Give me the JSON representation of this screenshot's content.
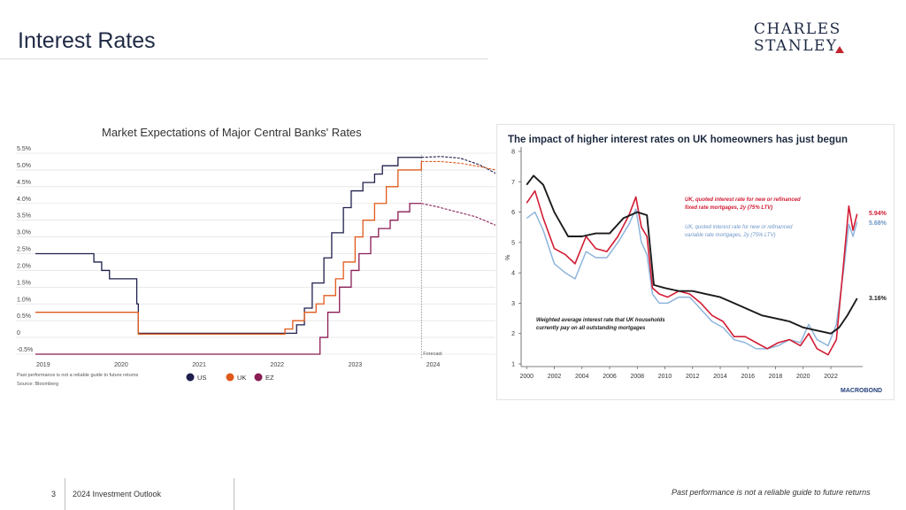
{
  "slide": {
    "title": "Interest Rates",
    "page_number": "3",
    "footer_label": "2024 Investment Outlook",
    "footer_disclaimer": "Past performance is not a reliable guide to future returns"
  },
  "logo": {
    "line1": "CHARLES",
    "line2": "STANLEY"
  },
  "chart_data": [
    {
      "type": "line",
      "title": "Market Expectations of Major Central Banks' Rates",
      "x_ticks": [
        "2019",
        "2020",
        "2021",
        "2022",
        "2023",
        "2024"
      ],
      "y_ticks": [
        "5.5%",
        "5.0%",
        "4.5%",
        "4.0%",
        "3.5%",
        "3.0%",
        "2.5%",
        "2.0%",
        "1.5%",
        "1.0%",
        "0.5%",
        "0",
        "-0.5%"
      ],
      "xlim": [
        2018.9,
        2024.8
      ],
      "ylim": [
        -0.5,
        5.5
      ],
      "forecast_label": "Forecast",
      "forecast_start": 2023.85,
      "footnote": "Past performance is not a reliable guide to future returns",
      "source": "Source: Bloomberg",
      "colors": {
        "US": "#1f1f4d",
        "UK": "#e05a1c",
        "EZ": "#8a1c55"
      },
      "series": [
        {
          "name": "US",
          "x": [
            2018.9,
            2019.55,
            2019.65,
            2019.75,
            2019.85,
            2020.15,
            2020.2,
            2020.22,
            2022.2,
            2022.25,
            2022.35,
            2022.45,
            2022.6,
            2022.7,
            2022.85,
            2022.95,
            2023.1,
            2023.25,
            2023.35,
            2023.55,
            2023.85
          ],
          "y": [
            2.5,
            2.5,
            2.25,
            2.0,
            1.75,
            1.75,
            1.0,
            0.125,
            0.125,
            0.375,
            0.875,
            1.625,
            2.375,
            3.125,
            3.875,
            4.375,
            4.625,
            4.875,
            5.125,
            5.375,
            5.375
          ]
        },
        {
          "name": "UK",
          "x": [
            2018.9,
            2020.2,
            2020.22,
            2022.0,
            2022.1,
            2022.2,
            2022.35,
            2022.5,
            2022.6,
            2022.75,
            2022.85,
            2023.0,
            2023.1,
            2023.25,
            2023.4,
            2023.55,
            2023.85
          ],
          "y": [
            0.75,
            0.75,
            0.1,
            0.1,
            0.25,
            0.5,
            0.75,
            1.0,
            1.25,
            1.75,
            2.25,
            3.0,
            3.5,
            4.0,
            4.5,
            5.0,
            5.25
          ]
        },
        {
          "name": "EZ",
          "x": [
            2018.9,
            2022.5,
            2022.55,
            2022.65,
            2022.8,
            2022.95,
            2023.05,
            2023.2,
            2023.3,
            2023.45,
            2023.55,
            2023.7,
            2023.85
          ],
          "y": [
            -0.5,
            -0.5,
            0.0,
            0.75,
            1.5,
            2.0,
            2.5,
            3.0,
            3.25,
            3.5,
            3.75,
            4.0,
            4.0
          ]
        }
      ],
      "forecast_series": [
        {
          "name": "US",
          "x": [
            2023.85,
            2024.1,
            2024.35,
            2024.6,
            2024.8
          ],
          "y": [
            5.375,
            5.4,
            5.35,
            5.15,
            4.9
          ]
        },
        {
          "name": "UK",
          "x": [
            2023.85,
            2024.1,
            2024.35,
            2024.6,
            2024.8
          ],
          "y": [
            5.25,
            5.25,
            5.2,
            5.1,
            5.0
          ]
        },
        {
          "name": "EZ",
          "x": [
            2023.85,
            2024.05,
            2024.3,
            2024.55,
            2024.8
          ],
          "y": [
            4.0,
            3.9,
            3.75,
            3.6,
            3.35
          ]
        }
      ],
      "legend": [
        "US",
        "UK",
        "EZ"
      ],
      "legend_position": "bottom"
    },
    {
      "type": "line",
      "title": "The impact of higher interest rates on UK homeowners has just begun",
      "ylabel": "%",
      "x_ticks": [
        "2000",
        "2002",
        "2004",
        "2006",
        "2008",
        "2010",
        "2012",
        "2014",
        "2016",
        "2018",
        "2020",
        "2022"
      ],
      "y_ticks": [
        "1",
        "2",
        "3",
        "4",
        "5",
        "6",
        "7",
        "8"
      ],
      "xlim": [
        1999.6,
        2024.3
      ],
      "ylim": [
        1,
        8
      ],
      "brand": "MACROBOND",
      "colors": {
        "fixed": "#d21c34",
        "variable": "#8eb4dc",
        "average": "#1b1b1b"
      },
      "series": [
        {
          "name": "UK, quoted interest rate for new or refinanced fixed rate mortgages, 2y (75% LTV)",
          "end_label": "5.94%",
          "x": [
            2000,
            2000.6,
            2001.2,
            2002,
            2002.8,
            2003.5,
            2004.3,
            2005,
            2005.8,
            2006.6,
            2007.4,
            2007.9,
            2008.3,
            2008.7,
            2009.1,
            2009.6,
            2010.2,
            2011,
            2011.8,
            2012.6,
            2013.4,
            2014.2,
            2015,
            2015.8,
            2016.6,
            2017.4,
            2018.2,
            2019,
            2019.8,
            2020.4,
            2021,
            2021.8,
            2022.4,
            2022.9,
            2023.3,
            2023.6,
            2023.9
          ],
          "y": [
            6.3,
            6.7,
            5.8,
            4.8,
            4.6,
            4.3,
            5.2,
            4.8,
            4.7,
            5.2,
            5.9,
            6.5,
            5.5,
            5.2,
            3.5,
            3.3,
            3.2,
            3.4,
            3.3,
            3.0,
            2.6,
            2.4,
            1.9,
            1.9,
            1.7,
            1.5,
            1.7,
            1.8,
            1.6,
            2.0,
            1.5,
            1.3,
            1.8,
            4.2,
            6.2,
            5.4,
            5.94
          ]
        },
        {
          "name": "UK, quoted interest rate for new or refinanced variable rate mortgages, 2y (75% LTV)",
          "end_label": "5.68%",
          "x": [
            2000,
            2000.6,
            2001.2,
            2002,
            2002.8,
            2003.5,
            2004.3,
            2005,
            2005.8,
            2006.6,
            2007.4,
            2007.9,
            2008.3,
            2008.7,
            2009.1,
            2009.6,
            2010.2,
            2011,
            2011.8,
            2012.6,
            2013.4,
            2014.2,
            2015,
            2015.8,
            2016.6,
            2017.4,
            2018.2,
            2019,
            2019.8,
            2020.4,
            2021,
            2021.8,
            2022.4,
            2022.9,
            2023.3,
            2023.6,
            2023.9
          ],
          "y": [
            5.8,
            6.0,
            5.4,
            4.3,
            4.0,
            3.8,
            4.7,
            4.5,
            4.5,
            5.0,
            5.6,
            6.1,
            5.0,
            4.6,
            3.3,
            3.0,
            3.0,
            3.2,
            3.2,
            2.8,
            2.4,
            2.2,
            1.8,
            1.7,
            1.5,
            1.5,
            1.6,
            1.8,
            1.7,
            2.3,
            1.8,
            1.6,
            2.3,
            4.0,
            5.6,
            5.2,
            5.68
          ]
        },
        {
          "name": "Weighted average interest rate that UK households currently pay on all outstanding mortgages",
          "end_label": "3.16%",
          "x": [
            2000,
            2000.5,
            2001.2,
            2002,
            2003,
            2004,
            2005,
            2006,
            2007,
            2008,
            2008.7,
            2009.2,
            2010,
            2011,
            2012,
            2013,
            2014,
            2015,
            2016,
            2017,
            2018,
            2019,
            2020,
            2021,
            2022,
            2022.6,
            2023.2,
            2023.9
          ],
          "y": [
            6.9,
            7.2,
            6.9,
            6.0,
            5.2,
            5.2,
            5.3,
            5.3,
            5.8,
            6.0,
            5.9,
            3.6,
            3.5,
            3.4,
            3.4,
            3.3,
            3.2,
            3.0,
            2.8,
            2.6,
            2.5,
            2.4,
            2.2,
            2.1,
            2.0,
            2.2,
            2.6,
            3.16
          ]
        }
      ]
    }
  ]
}
